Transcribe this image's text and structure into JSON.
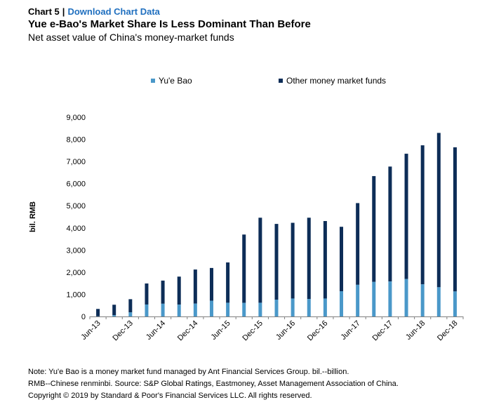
{
  "header": {
    "chart_number": "Chart 5",
    "separator": "|",
    "download_link": "Download Chart Data",
    "title": "Yue e-Bao's Market Share Is Less Dominant Than Before",
    "subtitle": "Net asset value of China's money-market funds"
  },
  "notes": {
    "line1": "Note: Yu'e Bao is a money market fund managed by Ant Financial Services Group. bil.--billion.",
    "line2": "RMB--Chinese renminbi. Source: S&P Global Ratings, Eastmoney, Asset Management Association of China.",
    "line3": "Copyright © 2019 by Standard & Poor's Financial Services LLC. All rights reserved."
  },
  "chart_data": {
    "type": "bar",
    "stacked": true,
    "ylabel": "bil. RMB",
    "ylim": [
      0,
      9000
    ],
    "yticks": [
      "0",
      "1,000",
      "2,000",
      "3,000",
      "4,000",
      "5,000",
      "6,000",
      "7,000",
      "8,000",
      "9,000"
    ],
    "ytick_values": [
      0,
      1000,
      2000,
      3000,
      4000,
      5000,
      6000,
      7000,
      8000,
      9000
    ],
    "categories": [
      "Jun-13",
      "Sep-13",
      "Dec-13",
      "Mar-14",
      "Jun-14",
      "Sep-14",
      "Dec-14",
      "Mar-15",
      "Jun-15",
      "Sep-15",
      "Dec-15",
      "Mar-16",
      "Jun-16",
      "Sep-16",
      "Dec-16",
      "Mar-17",
      "Jun-17",
      "Sep-17",
      "Dec-17",
      "Mar-18",
      "Jun-18",
      "Sep-18",
      "Dec-18"
    ],
    "xtick_labels": [
      "Jun-13",
      "Dec-13",
      "Jun-14",
      "Dec-14",
      "Jun-15",
      "Dec-15",
      "Jun-16",
      "Dec-16",
      "Jun-17",
      "Dec-17",
      "Jun-18",
      "Dec-18"
    ],
    "legend_position": "top",
    "series": [
      {
        "name": "Yu'e Bao",
        "color": "#4a98c9",
        "values": [
          5,
          55,
          185,
          540,
          575,
          535,
          580,
          710,
          620,
          615,
          620,
          760,
          810,
          790,
          810,
          1140,
          1430,
          1560,
          1580,
          1690,
          1450,
          1320,
          1130
        ]
      },
      {
        "name": "Other money market funds",
        "color": "#0d2d57",
        "values": [
          335,
          475,
          595,
          950,
          1045,
          1265,
          1540,
          1480,
          1820,
          3085,
          3840,
          3420,
          3420,
          3670,
          3500,
          2910,
          3690,
          4780,
          5190,
          5660,
          6280,
          6970,
          6510
        ]
      }
    ]
  }
}
